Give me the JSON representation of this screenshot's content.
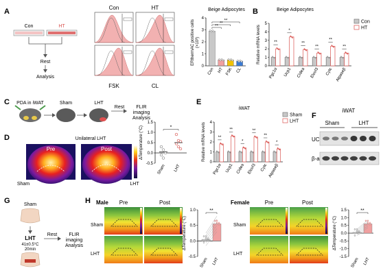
{
  "panel_labels": [
    "A",
    "B",
    "C",
    "D",
    "E",
    "F",
    "G",
    "H"
  ],
  "colors": {
    "con": "#c8c8c8",
    "ht": "#f0a0a0",
    "ht_dark": "#d9534f",
    "fsk": "#f2c300",
    "cl": "#3a7bd5",
    "sham": "#c8c8c8",
    "lht": "#f0a0a0"
  },
  "panelA": {
    "dish_labels": [
      "Con",
      "HT"
    ],
    "rest_label": "Rest",
    "analysis_label": "Analysis",
    "flow_labels": {
      "con": "Con",
      "ht": "HT",
      "fsk": "FSK",
      "cl": "CL"
    }
  },
  "panelC": {
    "pda_label": "PDA in iWAT",
    "sham_label": "Sham",
    "lht_label": "LHT",
    "rest_label": "Rest",
    "flir_label": "FLIR",
    "imaging_label": "imaging",
    "analysis_label": "Analysis"
  },
  "panelD": {
    "title": "Unilateral LHT",
    "pre_label": "Pre",
    "post_label": "Post",
    "sham_label": "Sham",
    "lht_label": "LHT"
  },
  "panelF": {
    "title": "iWAT",
    "group_labels": [
      "Sham",
      "LHT"
    ],
    "bands": [
      "UCP1",
      "β-actin"
    ]
  },
  "panelG": {
    "sham_label": "Sham",
    "lht_label": "LHT",
    "lht_condition": "41±0.5°C",
    "lht_time": "20min",
    "rest_label": "Rest",
    "flir_label": "FLIR",
    "imaging_label": "imaging",
    "analysis_label": "Analysis"
  },
  "panelH": {
    "male_label": "Male",
    "female_label": "Female",
    "pre_label": "Pre",
    "post_label": "Post",
    "sham_label": "Sham",
    "lht_label": "LHT"
  },
  "chart_data": [
    {
      "id": "A",
      "type": "bar",
      "title": "Beige Adipocytes",
      "ylabel": "ERthermAC positive cells",
      "ylabel_unit": "(×10³)",
      "categories": [
        "Con",
        "HT",
        "FSK",
        "CL"
      ],
      "values": [
        2.9,
        0.5,
        0.5,
        0.4
      ],
      "ylim": [
        0,
        4
      ],
      "yticks": [
        0,
        1,
        2,
        3,
        4
      ],
      "significance": [
        "**",
        "**",
        "**"
      ]
    },
    {
      "id": "B",
      "type": "bar",
      "title": "Beige Adipocytes",
      "ylabel": "Relative mRNA levels",
      "categories": [
        "Pgc1α",
        "Ucp1",
        "Cidea",
        "Elovl3",
        "Cytc",
        "Atpaseβ"
      ],
      "series": [
        {
          "name": "Con",
          "values": [
            1,
            1,
            1,
            1,
            1,
            1
          ]
        },
        {
          "name": "HT",
          "values": [
            2.0,
            3.4,
            1.9,
            1.5,
            2.3,
            1.5
          ]
        }
      ],
      "ylim": [
        0,
        5
      ],
      "yticks": [
        0,
        1,
        2,
        3,
        4,
        5
      ],
      "significance": [
        "**",
        "*",
        "**",
        "**",
        "**",
        "**"
      ],
      "legend": "top-right"
    },
    {
      "id": "C",
      "type": "scatter",
      "ylabel": "ΔTemperature (°C)",
      "categories": [
        "Sham",
        "LHT"
      ],
      "means": [
        0.05,
        0.5
      ],
      "points": [
        [
          0.3,
          0.15,
          0.0,
          -0.1,
          -0.25
        ],
        [
          0.9,
          0.6,
          0.55,
          0.45,
          0.3,
          0.2
        ]
      ],
      "ylim": [
        -0.5,
        1.5
      ],
      "yticks": [
        -0.5,
        0.0,
        0.5,
        1.0,
        1.5
      ],
      "significance": "*"
    },
    {
      "id": "E",
      "type": "bar",
      "title": "iWAT",
      "ylabel": "Relative mRNA levels",
      "categories": [
        "Pgc1α",
        "Ucp1",
        "Cidea",
        "Elovl3",
        "Cytc",
        "Atpaseβ"
      ],
      "series": [
        {
          "name": "Sham",
          "values": [
            1,
            1,
            1,
            1,
            1,
            1
          ]
        },
        {
          "name": "LHT",
          "values": [
            1.8,
            2.6,
            1.4,
            2.5,
            2.0,
            1.3
          ]
        }
      ],
      "ylim": [
        0,
        4
      ],
      "yticks": [
        0,
        1,
        2,
        3,
        4
      ],
      "significance": [
        "**",
        "**",
        "*",
        "**",
        "**",
        "*"
      ],
      "legend": "top-right"
    },
    {
      "id": "H-male",
      "type": "bar",
      "ylabel": "ΔTemperature (°C)",
      "categories": [
        "Sham",
        "LHT"
      ],
      "values": [
        0.05,
        0.55
      ],
      "ylim": [
        -0.5,
        1.0
      ],
      "yticks": [
        -0.5,
        0.0,
        0.5,
        1.0
      ],
      "significance": "**"
    },
    {
      "id": "H-female",
      "type": "bar",
      "ylabel": "ΔTemperature (°C)",
      "categories": [
        "Sham",
        "LHT"
      ],
      "values": [
        0.05,
        0.6
      ],
      "ylim": [
        -1.5,
        1.5
      ],
      "yticks": [
        -1.5,
        -1.0,
        -0.5,
        0.0,
        0.5,
        1.0,
        1.5
      ],
      "significance": "**"
    }
  ]
}
